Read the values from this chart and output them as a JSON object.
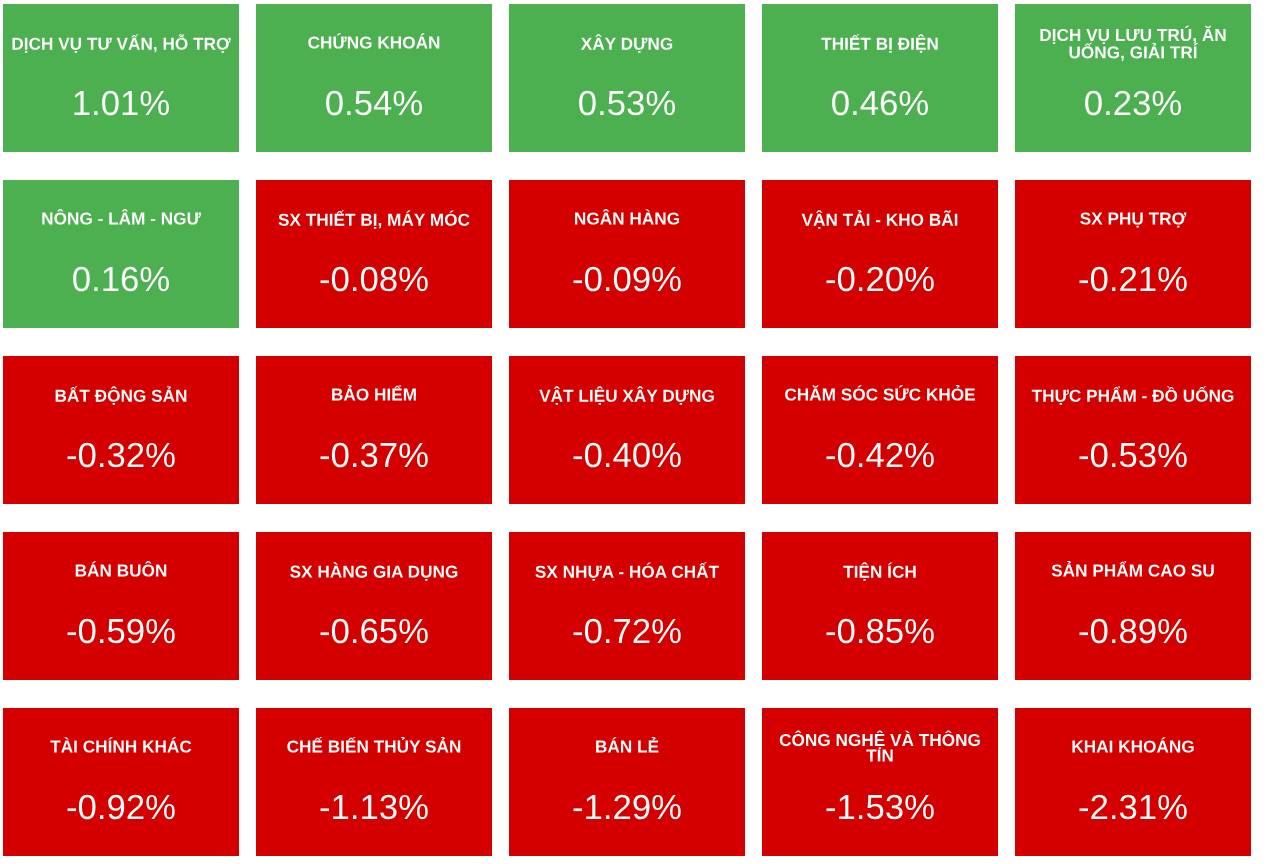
{
  "chart_data": {
    "type": "other",
    "categories": [
      "DỊCH VỤ TƯ VẤN, HỖ TRỢ",
      "CHỨNG KHOÁN",
      "XÂY DỰNG",
      "THIẾT BỊ ĐIỆN",
      "DỊCH VỤ LƯU TRÚ, ĂN UỐNG, GIẢI TRÍ",
      "NÔNG - LÂM - NGƯ",
      "SX THIẾT BỊ, MÁY MÓC",
      "NGÂN HÀNG",
      "VẬN TẢI - KHO BÃI",
      "SX PHỤ TRỢ",
      "BẤT ĐỘNG SẢN",
      "BẢO HIỂM",
      "VẬT LIỆU XÂY DỰNG",
      "CHĂM SÓC SỨC KHỎE",
      "THỰC PHẨM - ĐỒ UỐNG",
      "BÁN BUÔN",
      "SX HÀNG GIA DỤNG",
      "SX NHỰA - HÓA CHẤT",
      "TIỆN ÍCH",
      "SẢN PHẨM CAO SU",
      "TÀI CHÍNH KHÁC",
      "CHẾ BIẾN THỦY SẢN",
      "BÁN LẺ",
      "CÔNG NGHỆ VÀ THÔNG TIN",
      "KHAI KHOÁNG"
    ],
    "values": [
      1.01,
      0.54,
      0.53,
      0.46,
      0.23,
      0.16,
      -0.08,
      -0.09,
      -0.2,
      -0.21,
      -0.32,
      -0.37,
      -0.4,
      -0.42,
      -0.53,
      -0.59,
      -0.65,
      -0.72,
      -0.85,
      -0.89,
      -0.92,
      -1.13,
      -1.29,
      -1.53,
      -2.31
    ],
    "value_labels": [
      "1.01%",
      "0.54%",
      "0.53%",
      "0.46%",
      "0.23%",
      "0.16%",
      "-0.08%",
      "-0.09%",
      "-0.20%",
      "-0.21%",
      "-0.32%",
      "-0.37%",
      "-0.40%",
      "-0.42%",
      "-0.53%",
      "-0.59%",
      "-0.65%",
      "-0.72%",
      "-0.85%",
      "-0.89%",
      "-0.92%",
      "-1.13%",
      "-1.29%",
      "-1.53%",
      "-2.31%"
    ],
    "colors": [
      "#4caf50",
      "#4caf50",
      "#4caf50",
      "#4caf50",
      "#4caf50",
      "#4caf50",
      "#d40000",
      "#d40000",
      "#d40000",
      "#d40000",
      "#d40000",
      "#d40000",
      "#d40000",
      "#d40000",
      "#d40000",
      "#d40000",
      "#d40000",
      "#d40000",
      "#d40000",
      "#d40000",
      "#d40000",
      "#d40000",
      "#d40000",
      "#d40000",
      "#d40000"
    ]
  }
}
